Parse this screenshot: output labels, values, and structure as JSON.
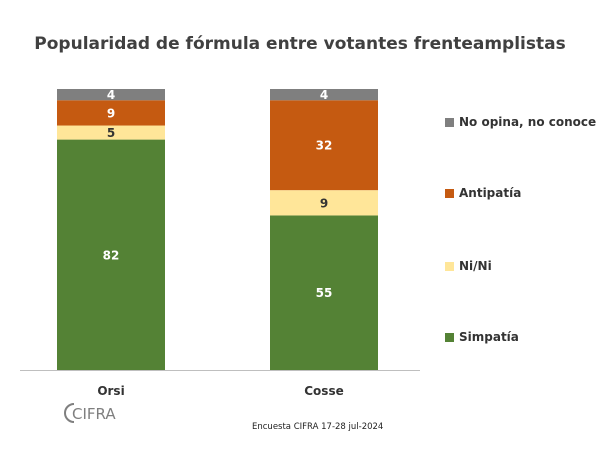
{
  "chart_data": {
    "type": "bar",
    "stacked": true,
    "title": "Popularidad de fórmula entre votantes frenteamplistas",
    "categories": [
      "Orsi",
      "Cosse"
    ],
    "series": [
      {
        "name": "Simpatía",
        "color": "#548235",
        "values": [
          82,
          55
        ]
      },
      {
        "name": "Ni/Ni",
        "color": "#FFE699",
        "values": [
          5,
          9
        ]
      },
      {
        "name": "Antipatía",
        "color": "#C55A11",
        "values": [
          9,
          32
        ]
      },
      {
        "name": "No opina, no conoce",
        "color": "#7F7F7F",
        "values": [
          4,
          4
        ]
      }
    ],
    "ylim": [
      0,
      100
    ],
    "legend_position": "right",
    "source": "Encuesta CIFRA 17-28 jul-2024"
  },
  "logo_text": "CIFRA"
}
